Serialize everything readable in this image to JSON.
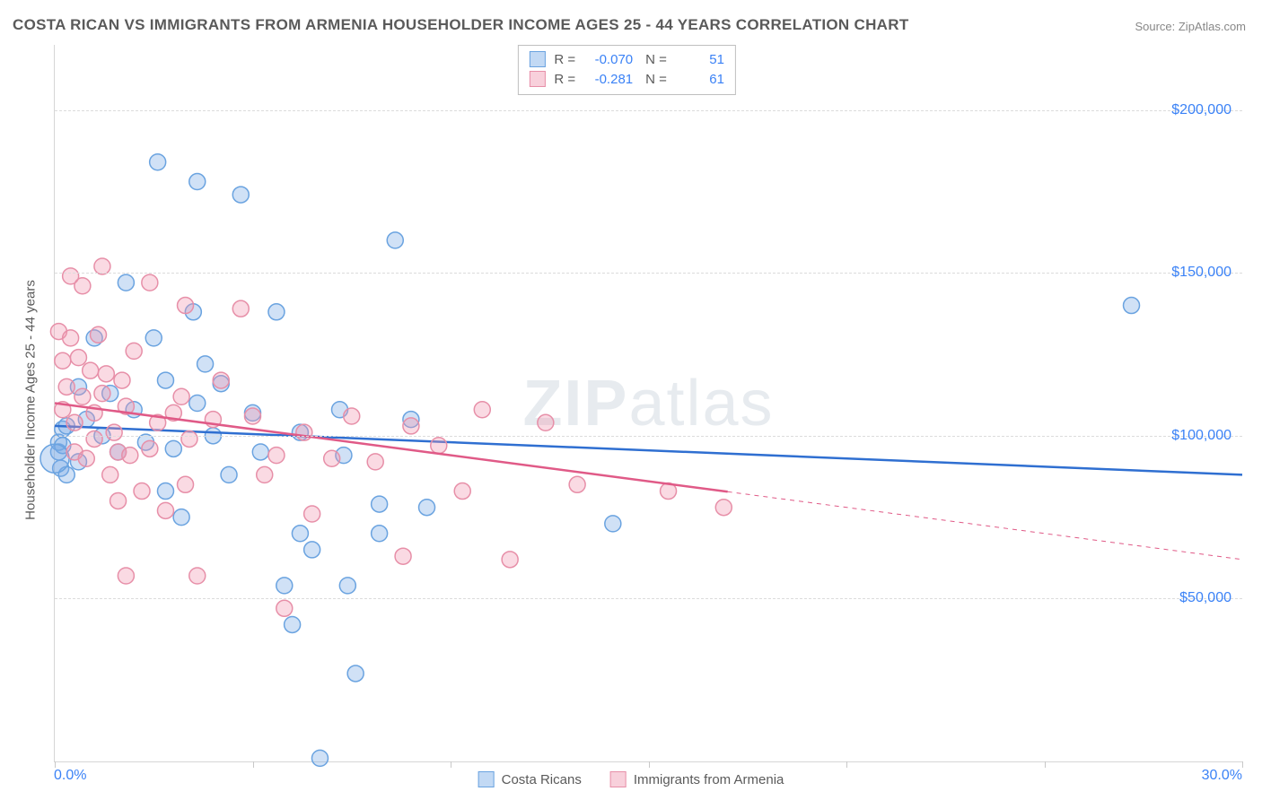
{
  "title": "COSTA RICAN VS IMMIGRANTS FROM ARMENIA HOUSEHOLDER INCOME AGES 25 - 44 YEARS CORRELATION CHART",
  "source": "Source: ZipAtlas.com",
  "watermark_bold": "ZIP",
  "watermark_light": "atlas",
  "chart": {
    "type": "scatter",
    "background_color": "#ffffff",
    "grid_color": "#dcdcdc",
    "axis_color": "#d6d6d6",
    "xlim": [
      0,
      30
    ],
    "ylim": [
      0,
      220000
    ],
    "x_tick_step": 5,
    "x_tick_labels": {
      "left": "0.0%",
      "right": "30.0%"
    },
    "y_gridlines": [
      50000,
      100000,
      150000,
      200000
    ],
    "y_tick_labels": [
      "$50,000",
      "$100,000",
      "$150,000",
      "$200,000"
    ],
    "ylabel": "Householder Income Ages 25 - 44 years",
    "tick_label_color": "#3b82f6",
    "tick_label_fontsize": 16,
    "label_color": "#5a5a5a",
    "label_fontsize": 15,
    "marker_radius": 9,
    "marker_stroke_width": 1.5,
    "trendline_width": 2.5,
    "series": [
      {
        "name": "Costa Ricans",
        "marker_fill": "rgba(120,170,230,0.35)",
        "marker_stroke": "#6aa3e0",
        "trend_color": "#2f6fd1",
        "R": "-0.070",
        "N": "51",
        "trend": {
          "x1": 0,
          "y1": 103000,
          "x2": 30,
          "y2": 88000,
          "dash_from_x": null
        },
        "points": [
          [
            0.1,
            95000
          ],
          [
            0.1,
            98000
          ],
          [
            0.15,
            90000
          ],
          [
            0.2,
            102000
          ],
          [
            0.2,
            97000
          ],
          [
            0.3,
            103000
          ],
          [
            0.3,
            88000
          ],
          [
            0.6,
            115000
          ],
          [
            0.6,
            92000
          ],
          [
            0.8,
            105000
          ],
          [
            1.0,
            130000
          ],
          [
            1.2,
            100000
          ],
          [
            1.4,
            113000
          ],
          [
            1.6,
            95000
          ],
          [
            1.8,
            147000
          ],
          [
            2.0,
            108000
          ],
          [
            2.3,
            98000
          ],
          [
            2.5,
            130000
          ],
          [
            2.6,
            184000
          ],
          [
            2.8,
            117000
          ],
          [
            2.8,
            83000
          ],
          [
            3.0,
            96000
          ],
          [
            3.2,
            75000
          ],
          [
            3.5,
            138000
          ],
          [
            3.6,
            110000
          ],
          [
            3.6,
            178000
          ],
          [
            3.8,
            122000
          ],
          [
            4.0,
            100000
          ],
          [
            4.2,
            116000
          ],
          [
            4.4,
            88000
          ],
          [
            4.7,
            174000
          ],
          [
            5.0,
            107000
          ],
          [
            5.2,
            95000
          ],
          [
            5.6,
            138000
          ],
          [
            5.8,
            54000
          ],
          [
            6.0,
            42000
          ],
          [
            6.2,
            70000
          ],
          [
            6.2,
            101000
          ],
          [
            6.5,
            65000
          ],
          [
            6.7,
            1000
          ],
          [
            7.2,
            108000
          ],
          [
            7.3,
            94000
          ],
          [
            7.4,
            54000
          ],
          [
            7.6,
            27000
          ],
          [
            8.2,
            79000
          ],
          [
            8.2,
            70000
          ],
          [
            8.6,
            160000
          ],
          [
            9.0,
            105000
          ],
          [
            9.4,
            78000
          ],
          [
            14.1,
            73000
          ],
          [
            27.2,
            140000
          ]
        ],
        "large_point": {
          "x": 0.0,
          "y": 93000,
          "r": 16
        }
      },
      {
        "name": "Immigrants from Armenia",
        "marker_fill": "rgba(240,150,175,0.35)",
        "marker_stroke": "#e78fa8",
        "trend_color": "#e05a87",
        "R": "-0.281",
        "N": "61",
        "trend": {
          "x1": 0,
          "y1": 110000,
          "x2": 30,
          "y2": 62000,
          "dash_from_x": 17
        },
        "points": [
          [
            0.1,
            132000
          ],
          [
            0.2,
            123000
          ],
          [
            0.2,
            108000
          ],
          [
            0.3,
            115000
          ],
          [
            0.4,
            149000
          ],
          [
            0.4,
            130000
          ],
          [
            0.5,
            95000
          ],
          [
            0.5,
            104000
          ],
          [
            0.6,
            124000
          ],
          [
            0.7,
            112000
          ],
          [
            0.7,
            146000
          ],
          [
            0.8,
            93000
          ],
          [
            0.9,
            120000
          ],
          [
            1.0,
            107000
          ],
          [
            1.0,
            99000
          ],
          [
            1.1,
            131000
          ],
          [
            1.2,
            152000
          ],
          [
            1.2,
            113000
          ],
          [
            1.3,
            119000
          ],
          [
            1.4,
            88000
          ],
          [
            1.5,
            101000
          ],
          [
            1.6,
            80000
          ],
          [
            1.6,
            95000
          ],
          [
            1.7,
            117000
          ],
          [
            1.8,
            109000
          ],
          [
            1.8,
            57000
          ],
          [
            1.9,
            94000
          ],
          [
            2.0,
            126000
          ],
          [
            2.2,
            83000
          ],
          [
            2.4,
            96000
          ],
          [
            2.4,
            147000
          ],
          [
            2.6,
            104000
          ],
          [
            2.8,
            77000
          ],
          [
            3.0,
            107000
          ],
          [
            3.2,
            112000
          ],
          [
            3.3,
            140000
          ],
          [
            3.3,
            85000
          ],
          [
            3.4,
            99000
          ],
          [
            3.6,
            57000
          ],
          [
            4.0,
            105000
          ],
          [
            4.2,
            117000
          ],
          [
            4.7,
            139000
          ],
          [
            5.0,
            106000
          ],
          [
            5.3,
            88000
          ],
          [
            5.6,
            94000
          ],
          [
            5.8,
            47000
          ],
          [
            6.3,
            101000
          ],
          [
            6.5,
            76000
          ],
          [
            7.0,
            93000
          ],
          [
            7.5,
            106000
          ],
          [
            8.1,
            92000
          ],
          [
            8.8,
            63000
          ],
          [
            9.0,
            103000
          ],
          [
            9.7,
            97000
          ],
          [
            10.3,
            83000
          ],
          [
            10.8,
            108000
          ],
          [
            11.5,
            62000
          ],
          [
            12.4,
            104000
          ],
          [
            13.2,
            85000
          ],
          [
            15.5,
            83000
          ],
          [
            16.9,
            78000
          ]
        ]
      }
    ]
  },
  "legend_top": {
    "border_color": "#bfbfbf",
    "rows": [
      {
        "swatch_fill": "rgba(120,170,230,0.45)",
        "swatch_border": "#6aa3e0",
        "r_label": "R =",
        "r_val": "-0.070",
        "n_label": "N =",
        "n_val": "51"
      },
      {
        "swatch_fill": "rgba(240,150,175,0.45)",
        "swatch_border": "#e78fa8",
        "r_label": "R =",
        "r_val": "-0.281",
        "n_label": "N =",
        "n_val": "61"
      }
    ]
  },
  "legend_bottom": {
    "items": [
      {
        "swatch_fill": "rgba(120,170,230,0.45)",
        "swatch_border": "#6aa3e0",
        "label": "Costa Ricans"
      },
      {
        "swatch_fill": "rgba(240,150,175,0.45)",
        "swatch_border": "#e78fa8",
        "label": "Immigrants from Armenia"
      }
    ]
  }
}
